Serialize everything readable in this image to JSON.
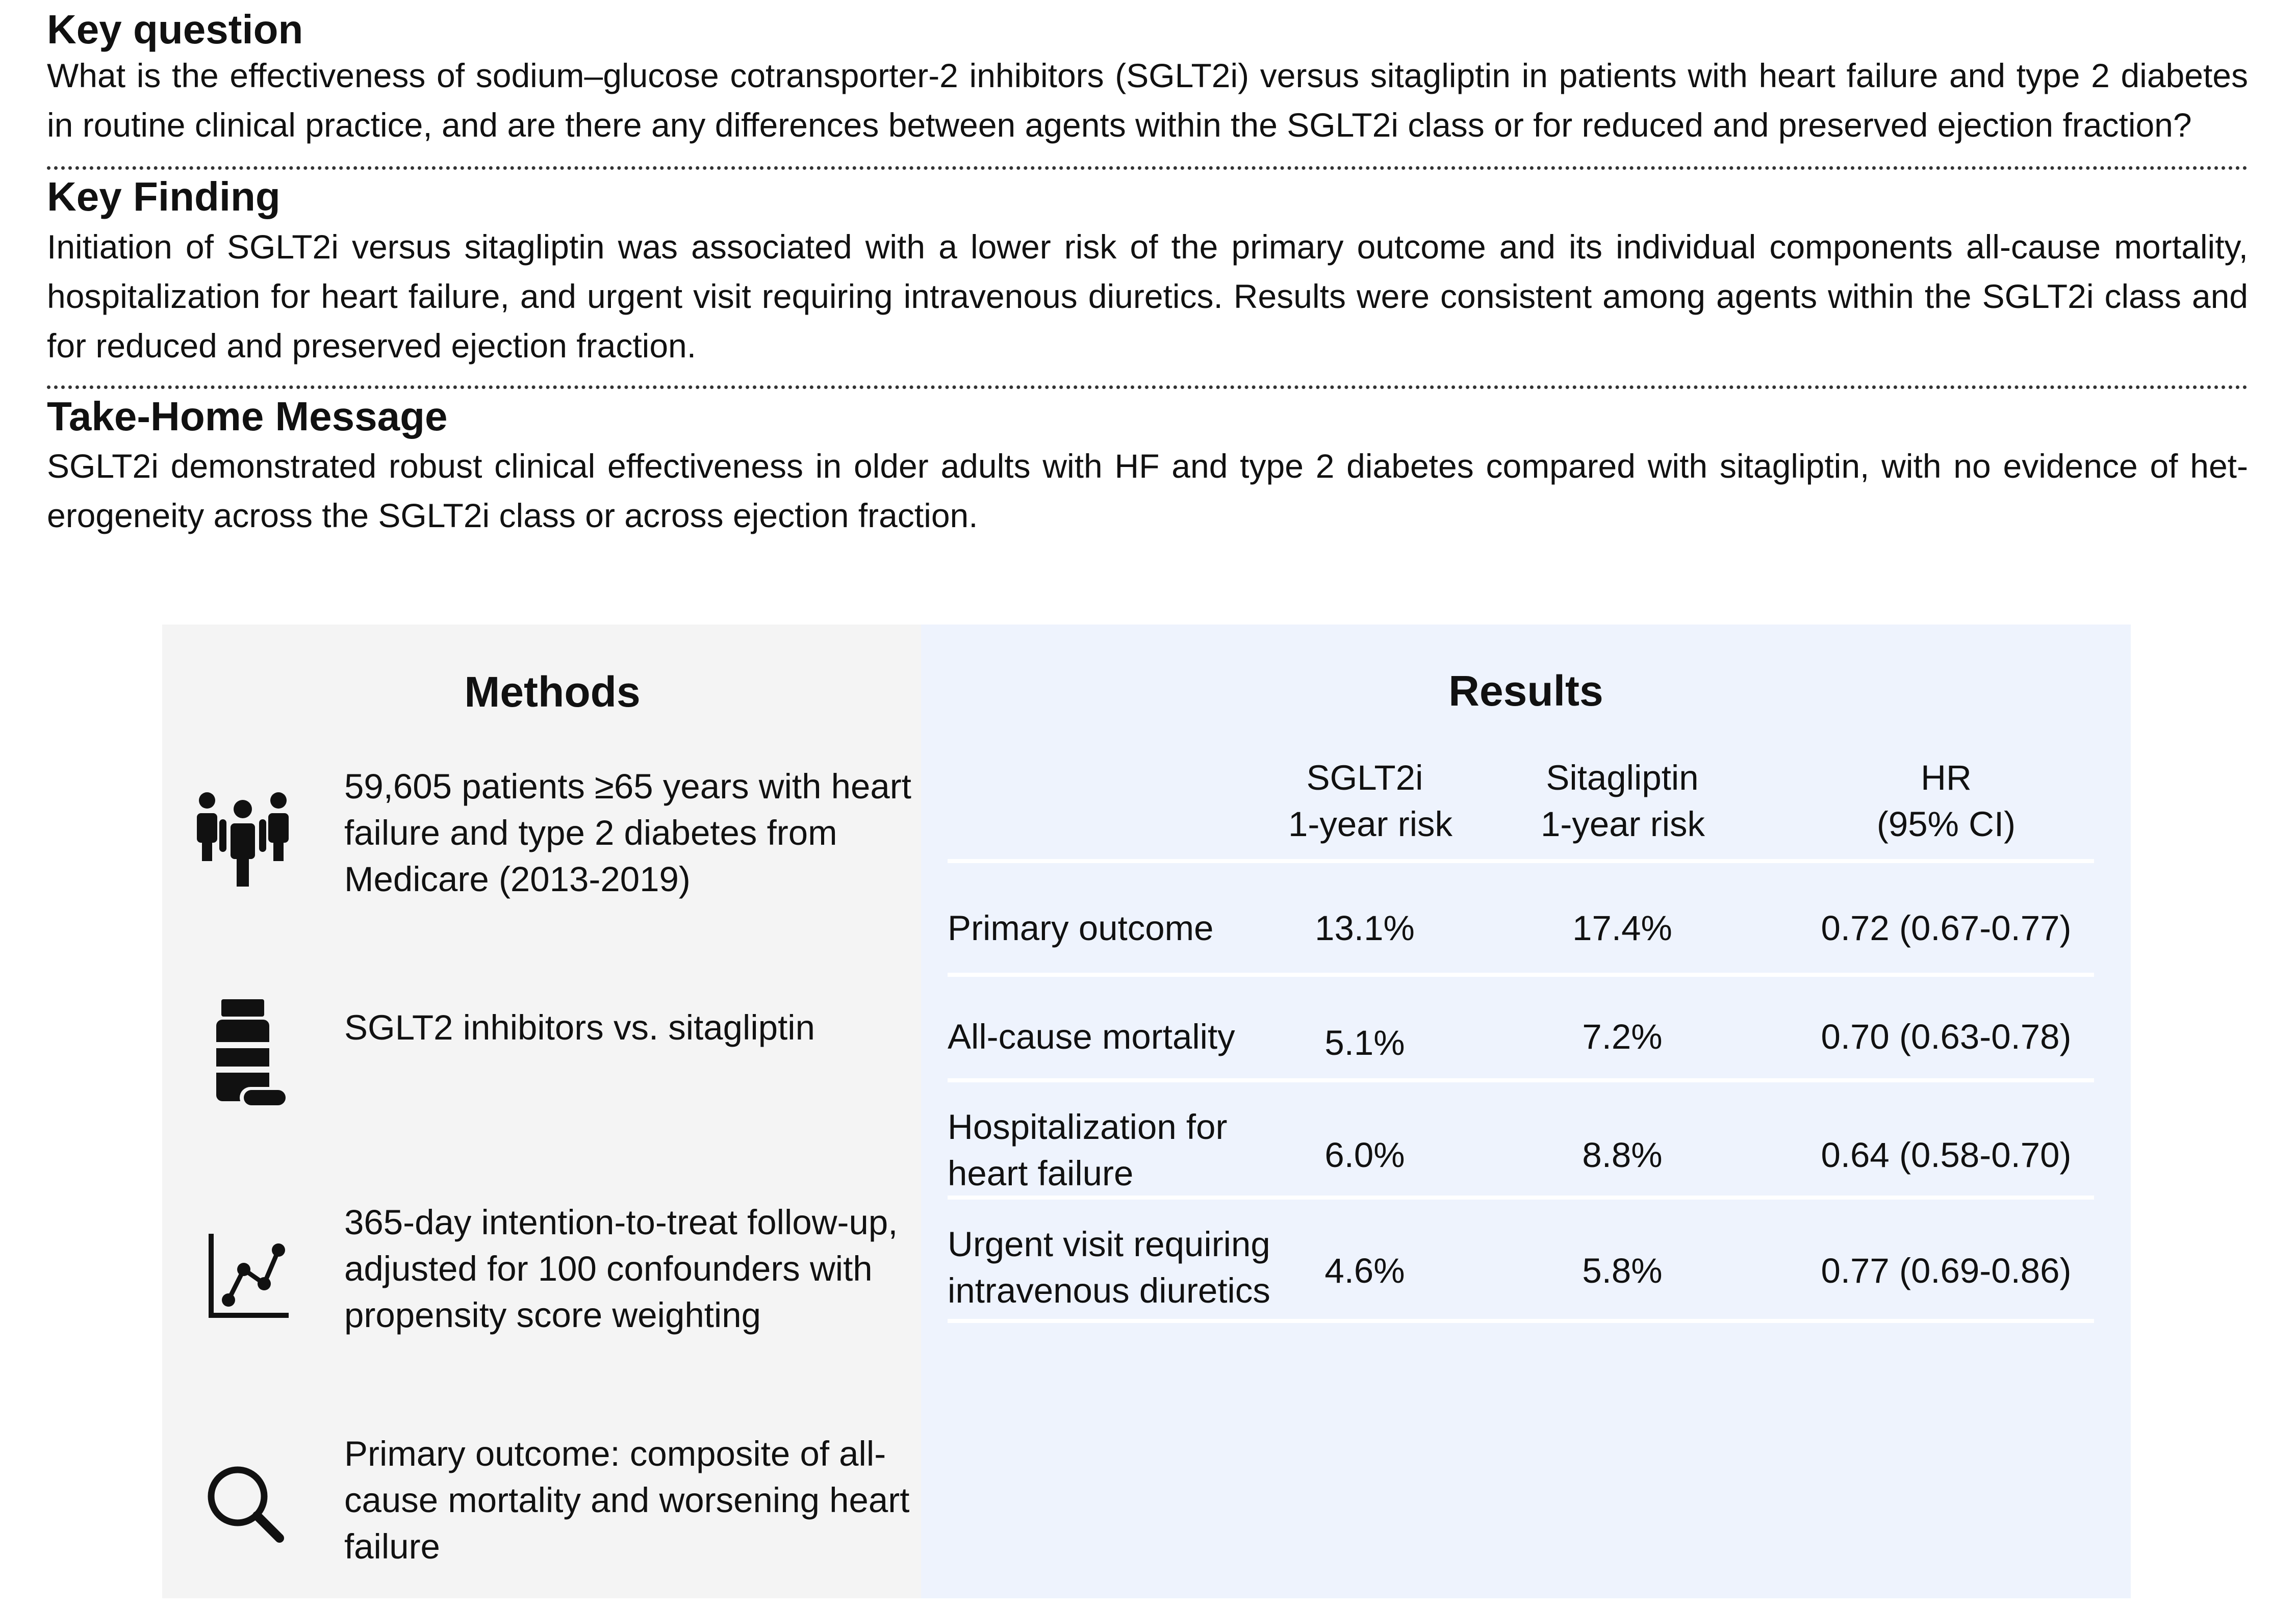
{
  "key_question": {
    "title": "Key question",
    "text": "What is the effectiveness of sodium–glucose cotransporter-2 inhibitors (SGLT2i) versus sitagliptin in patients with heart failure and type 2 diabetes in routine clinical practice, and are there any differences between agents within the SGLT2i class or for reduced and preserved ejection fraction?"
  },
  "key_finding": {
    "title": "Key Finding",
    "text": "Initiation of SGLT2i versus sitagliptin was associated with a lower risk of the primary outcome and its individual components all-cause mortality, hospitalization for heart failure, and urgent visit requiring intravenous diuretics. Results were consistent among agents within the SGLT2i class and for reduced and preserved ejection fraction."
  },
  "take_home": {
    "title": "Take-Home Message",
    "text": "SGLT2i demonstrated robust clinical effectiveness in older adults with HF and type 2 diabetes compared with sitagliptin, with no evidence of het-erogeneity across the SGLT2i class or across ejection fraction."
  },
  "methods": {
    "heading": "Methods",
    "items": [
      {
        "icon": "people-group-icon",
        "text": "59,605 patients ≥65 years with heart failure and type 2 diabetes from Medicare (2013-2019)"
      },
      {
        "icon": "medication-bottle-icon",
        "text": "SGLT2 inhibitors vs. sitagliptin"
      },
      {
        "icon": "line-chart-icon",
        "text": "365-day intention-to-treat follow-up, adjusted for 100 confounders with propensity score weighting"
      },
      {
        "icon": "magnifying-glass-icon",
        "text": "Primary outcome: composite of all-cause mortality and worsening heart failure"
      }
    ]
  },
  "results": {
    "heading": "Results",
    "columns": [
      {
        "line1": "SGLT2i",
        "line2": "1-year risk"
      },
      {
        "line1": "Sitagliptin",
        "line2": "1-year risk"
      },
      {
        "line1": "HR",
        "line2": "(95% CI)"
      }
    ],
    "rows": [
      {
        "label": "Primary outcome",
        "sglt2i": "13.1%",
        "sitagliptin": "17.4%",
        "hr": "0.72 (0.67-0.77)"
      },
      {
        "label": "All-cause mortality",
        "sglt2i": "5.1%",
        "sitagliptin": "7.2%",
        "hr": "0.70 (0.63-0.78)"
      },
      {
        "label": "Hospitalization for heart failure",
        "sglt2i": "6.0%",
        "sitagliptin": "8.8%",
        "hr": "0.64 (0.58-0.70)"
      },
      {
        "label": "Urgent visit requiring intravenous diuretics",
        "sglt2i": "4.6%",
        "sitagliptin": "5.8%",
        "hr": "0.77 (0.69-0.86)"
      }
    ]
  }
}
